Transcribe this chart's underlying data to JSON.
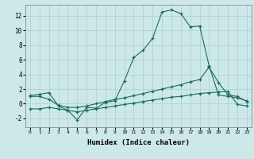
{
  "xlabel": "Humidex (Indice chaleur)",
  "background_color": "#cde8e8",
  "grid_color": "#aacfcf",
  "line_color": "#1a6b5a",
  "xlim": [
    -0.5,
    23.5
  ],
  "ylim": [
    -3.2,
    13.5
  ],
  "xticks": [
    0,
    1,
    2,
    3,
    4,
    5,
    6,
    7,
    8,
    9,
    10,
    11,
    12,
    13,
    14,
    15,
    16,
    17,
    18,
    19,
    20,
    21,
    22,
    23
  ],
  "yticks": [
    -2,
    0,
    2,
    4,
    6,
    8,
    10,
    12
  ],
  "line1_x": [
    0,
    1,
    2,
    3,
    4,
    5,
    6,
    7,
    8,
    9,
    10,
    11,
    12,
    13,
    14,
    15,
    16,
    17,
    18,
    19,
    20,
    21,
    22,
    23
  ],
  "line1_y": [
    1.1,
    1.3,
    1.5,
    -0.3,
    -0.9,
    -2.2,
    -0.5,
    -0.6,
    0.2,
    0.4,
    3.1,
    6.3,
    7.3,
    8.9,
    12.5,
    12.8,
    12.3,
    10.5,
    10.6,
    5.2,
    1.2,
    1.0,
    0.8,
    0.4
  ],
  "line2_x": [
    0,
    1,
    2,
    3,
    4,
    5,
    6,
    7,
    8,
    9,
    10,
    11,
    12,
    13,
    14,
    15,
    16,
    17,
    18,
    19,
    20,
    21,
    22,
    23
  ],
  "line2_y": [
    1.0,
    1.0,
    0.6,
    -0.2,
    -0.5,
    -0.5,
    -0.3,
    0.0,
    0.3,
    0.6,
    0.8,
    1.1,
    1.4,
    1.7,
    2.0,
    2.3,
    2.6,
    3.0,
    3.3,
    5.0,
    2.9,
    1.2,
    1.0,
    0.3
  ],
  "line3_x": [
    0,
    1,
    2,
    3,
    4,
    5,
    6,
    7,
    8,
    9,
    10,
    11,
    12,
    13,
    14,
    15,
    16,
    17,
    18,
    19,
    20,
    21,
    22,
    23
  ],
  "line3_y": [
    -0.7,
    -0.7,
    -0.5,
    -0.7,
    -0.9,
    -1.1,
    -0.9,
    -0.7,
    -0.5,
    -0.3,
    -0.1,
    0.1,
    0.3,
    0.5,
    0.7,
    0.9,
    1.0,
    1.2,
    1.4,
    1.5,
    1.6,
    1.7,
    -0.1,
    -0.3
  ]
}
